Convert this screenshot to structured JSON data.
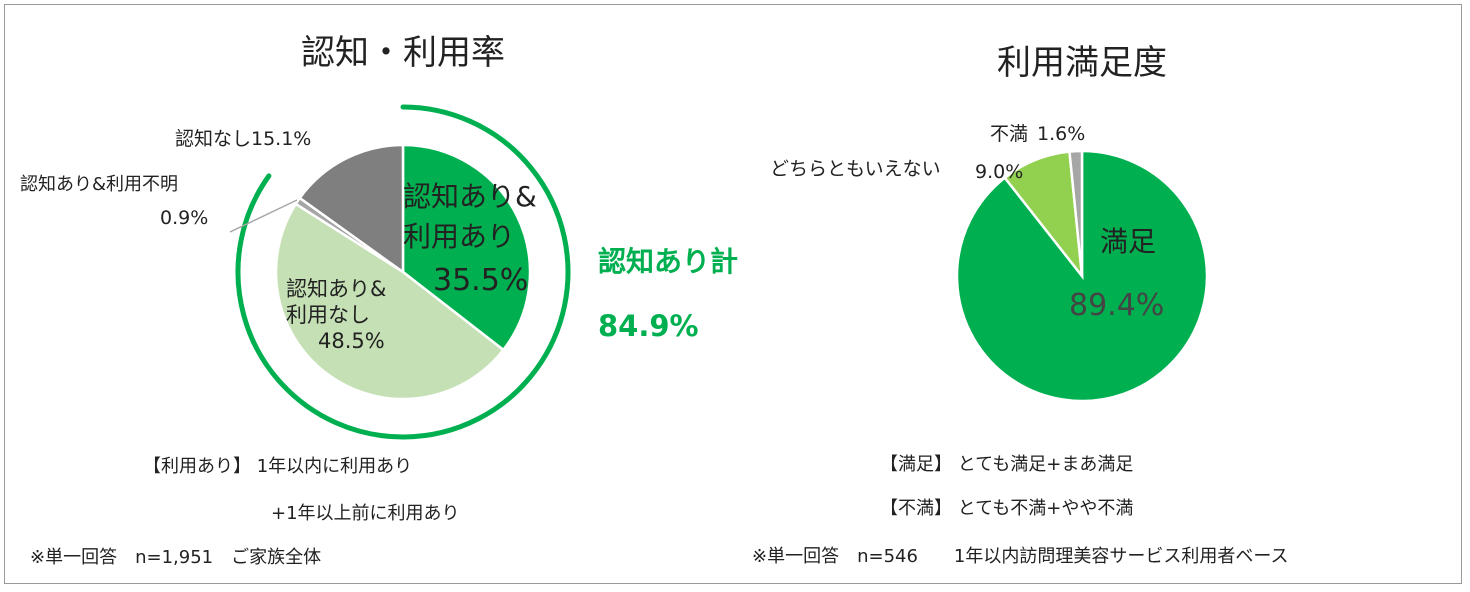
{
  "colors": {
    "green": "#00b050",
    "light_green": "#c5e0b4",
    "lime": "#92d050",
    "gray": "#7f7f7f",
    "light_gray": "#a6a6a6",
    "text": "#222222"
  },
  "chart_data": [
    {
      "type": "pie",
      "title": "認知・利用率",
      "slices": [
        {
          "label_lines": [
            "認知あり&",
            "利用あり",
            "35.5%"
          ],
          "value": 35.5,
          "color": "#00b050"
        },
        {
          "label_lines": [
            "認知あり&",
            "利用なし",
            "48.5%"
          ],
          "value": 48.5,
          "color": "#c5e0b4"
        },
        {
          "label_lines": [
            "認知あり&利用不明",
            "0.9%"
          ],
          "value": 0.9,
          "color": "#a6a6a6"
        },
        {
          "label_lines": [
            "認知なし15.1%"
          ],
          "value": 15.1,
          "color": "#7f7f7f"
        }
      ],
      "highlight": {
        "label": "認知あり計",
        "value": "84.9%",
        "color": "#00b050"
      },
      "notes": [
        "【利用あり】 1年以内に利用あり",
        "+1年以上前に利用あり",
        "※単一回答　n=1,951　ご家族全体"
      ]
    },
    {
      "type": "pie",
      "title": "利用満足度",
      "slices": [
        {
          "label_lines": [
            "満足",
            "89.4%"
          ],
          "value": 89.4,
          "color": "#00b050"
        },
        {
          "label_lines": [
            "どちらともいえない",
            "9.0%"
          ],
          "value": 9.0,
          "color": "#92d050"
        },
        {
          "label_lines": [
            "不満",
            "1.6%"
          ],
          "value": 1.6,
          "color": "#a6a6a6"
        }
      ],
      "notes": [
        "【満足】 とても満足+まあ満足",
        "【不満】 とても不満+やや不満",
        "※単一回答　n=546　　1年以内訪問理美容サービス利用者ベース"
      ]
    }
  ]
}
